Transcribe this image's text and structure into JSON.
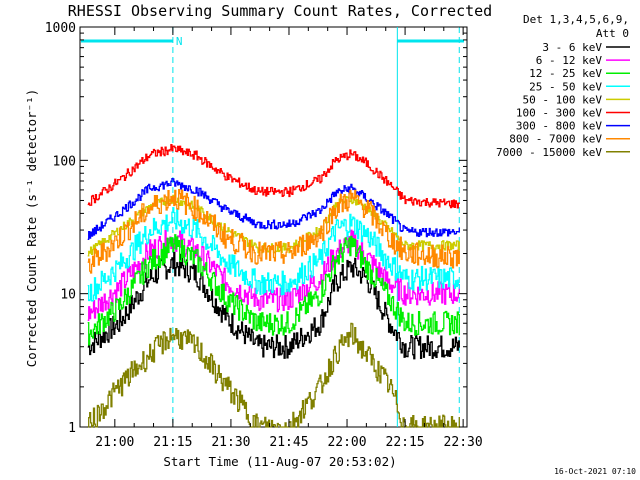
{
  "chart_data": {
    "type": "line",
    "title": "RHESSI Observing Summary Count Rates, Corrected",
    "xlabel": "Start Time (11-Aug-07 20:53:02)",
    "ylabel": "Corrected Count Rate (s⁻¹ detector⁻¹)",
    "yscale": "log",
    "ylim": [
      1,
      1000
    ],
    "xlim_minutes_from_start": [
      -2,
      98
    ],
    "x_tick_labels": [
      "21:00",
      "21:15",
      "21:30",
      "21:45",
      "22:00",
      "22:15",
      "22:30"
    ],
    "x_tick_minutes": [
      7,
      22,
      37,
      52,
      67,
      82,
      97
    ],
    "y_tick_labels": [
      "1",
      "10",
      "100",
      "1000"
    ],
    "y_tick_values": [
      1,
      10,
      100,
      1000
    ],
    "legend_header": [
      "Det 1,3,4,5,6,9,",
      "Att 0"
    ],
    "legend_position": "right",
    "timestamp": "16-Oct-2021 07:10",
    "night_bars": [
      {
        "start": -2,
        "end": 22,
        "label": "N"
      },
      {
        "start": 80,
        "end": 98,
        "label": ""
      }
    ],
    "dashed_markers_minutes": [
      22,
      96
    ],
    "solid_marker_minutes": [
      80
    ],
    "sample_times_minutes": [
      0,
      8,
      16,
      22,
      28,
      36,
      44,
      52,
      60,
      64,
      68,
      72,
      78,
      82,
      90,
      96
    ],
    "series": [
      {
        "name": "3 - 6 keV",
        "color": "#000000",
        "values": [
          4,
          6,
          13,
          17,
          14,
          6.5,
          4,
          4,
          6,
          12,
          16,
          13,
          6,
          4,
          4,
          4
        ]
      },
      {
        "name": "6 - 12 keV",
        "color": "#ff00ff",
        "values": [
          7,
          11,
          21,
          26,
          21,
          12,
          9,
          9,
          13,
          20,
          25,
          19,
          12,
          10,
          10,
          10
        ]
      },
      {
        "name": "12 - 25 keV",
        "color": "#00ee00",
        "values": [
          5,
          8,
          17,
          23,
          18,
          9,
          6,
          6,
          10,
          18,
          24,
          16,
          9,
          6,
          6,
          6
        ]
      },
      {
        "name": "25 - 50 keV",
        "color": "#00ffff",
        "values": [
          10,
          16,
          30,
          36,
          30,
          17,
          12,
          12,
          18,
          30,
          34,
          28,
          17,
          13,
          13,
          13
        ]
      },
      {
        "name": "50 - 100 keV",
        "color": "#cccc00",
        "values": [
          20,
          30,
          45,
          52,
          44,
          30,
          22,
          22,
          30,
          46,
          52,
          44,
          30,
          23,
          23,
          23
        ]
      },
      {
        "name": "100 - 300 keV",
        "color": "#ff0000",
        "values": [
          48,
          70,
          110,
          122,
          108,
          75,
          58,
          58,
          72,
          100,
          112,
          95,
          66,
          50,
          48,
          47
        ]
      },
      {
        "name": "300 - 800 keV",
        "color": "#0000ff",
        "values": [
          27,
          40,
          62,
          68,
          60,
          42,
          33,
          33,
          42,
          57,
          62,
          52,
          38,
          29,
          29,
          29
        ]
      },
      {
        "name": "800 - 7000 keV",
        "color": "#ff8800",
        "values": [
          16,
          26,
          44,
          54,
          43,
          26,
          20,
          20,
          28,
          44,
          52,
          44,
          26,
          20,
          19,
          19
        ]
      },
      {
        "name": "7000 - 15000 keV",
        "color": "#808000",
        "values": [
          1,
          2,
          3.5,
          5,
          4,
          2,
          1,
          1,
          2,
          3.5,
          5,
          3.5,
          2,
          1,
          1,
          1
        ]
      }
    ]
  }
}
